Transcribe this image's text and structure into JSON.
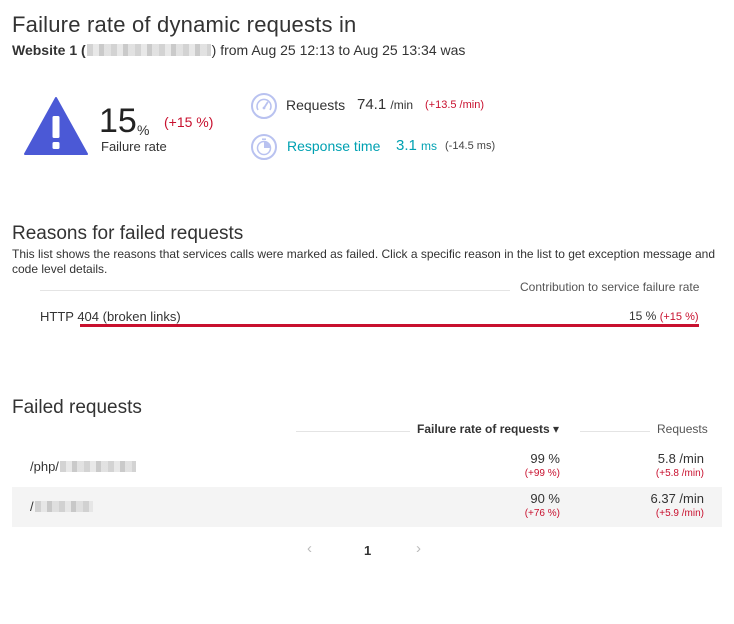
{
  "header": {
    "title": "Failure rate of dynamic requests in",
    "subtitle_prefix": "Website 1",
    "subtitle_open": " (",
    "subtitle_rest": ") from Aug 25 12:13 to Aug 25 13:34 was"
  },
  "failure_rate": {
    "value": "15",
    "unit": "%",
    "delta": "(+15 %)",
    "label": "Failure rate",
    "icon": "warning-triangle-icon"
  },
  "metrics": {
    "requests": {
      "label": "Requests",
      "value": "74.1",
      "unit": "/min",
      "delta": "(+13.5 /min)",
      "icon": "speedometer-icon"
    },
    "response_time": {
      "label": "Response time",
      "value": "3.1",
      "unit": "ms",
      "delta": "(-14.5 ms)",
      "icon": "stopwatch-icon"
    }
  },
  "reasons": {
    "title": "Reasons for failed requests",
    "description": "This list shows the reasons that services calls were marked as failed. Click a specific reason in the list to get exception message and code level details.",
    "column_header": "Contribution to service failure rate",
    "items": [
      {
        "label": "HTTP 404 (broken links)",
        "value": "15 %",
        "delta": "(+15 %)",
        "fraction": 1.0
      }
    ]
  },
  "failed_requests": {
    "title": "Failed requests",
    "col_rate": "Failure rate of requests ▾",
    "col_requests": "Requests",
    "rows": [
      {
        "name": "/php/",
        "rate": "99 %",
        "rate_delta": "(+99 %)",
        "requests": "5.8 /min",
        "requests_delta": "(+5.8 /min)"
      },
      {
        "name": "/",
        "rate": "90 %",
        "rate_delta": "(+76 %)",
        "requests": "6.37 /min",
        "requests_delta": "(+5.9 /min)"
      }
    ]
  },
  "pagination": {
    "prev": "‹",
    "current": "1",
    "next": "›"
  },
  "colors": {
    "danger": "#c8102e",
    "accent_blue": "#4b59d6",
    "cyan": "#00a1b2",
    "icon_ring": "#b9c2f0"
  }
}
